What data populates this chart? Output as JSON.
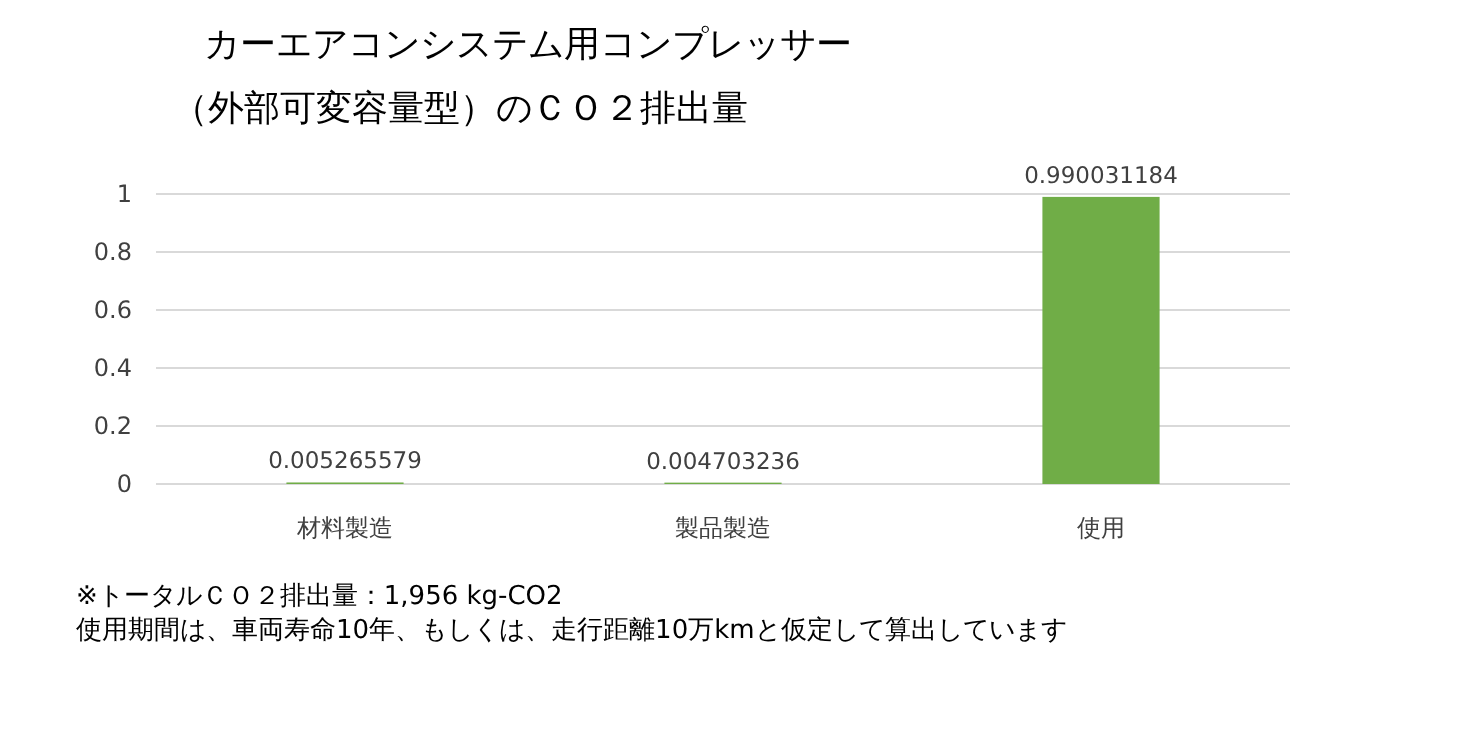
{
  "chart_data": {
    "type": "bar",
    "title": "カーエアコンシステム用コンプレッサー",
    "subtitle": "（外部可変容量型）のＣＯ２排出量",
    "categories": [
      "材料製造",
      "製品製造",
      "使用"
    ],
    "values": [
      0.005265579,
      0.004703236,
      0.990031184
    ],
    "color": "#70ad47",
    "ylim": [
      0,
      1
    ],
    "yticks": [
      0,
      0.2,
      0.4,
      0.6,
      0.8,
      1
    ],
    "grid": "y",
    "data_labels": true,
    "annotations": [
      "※トータルＣＯ２排出量：1,956 kg-CO2",
      "使用期間は、車両寿命10年、もしくは、走行距離10万kmと仮定して算出しています"
    ]
  }
}
